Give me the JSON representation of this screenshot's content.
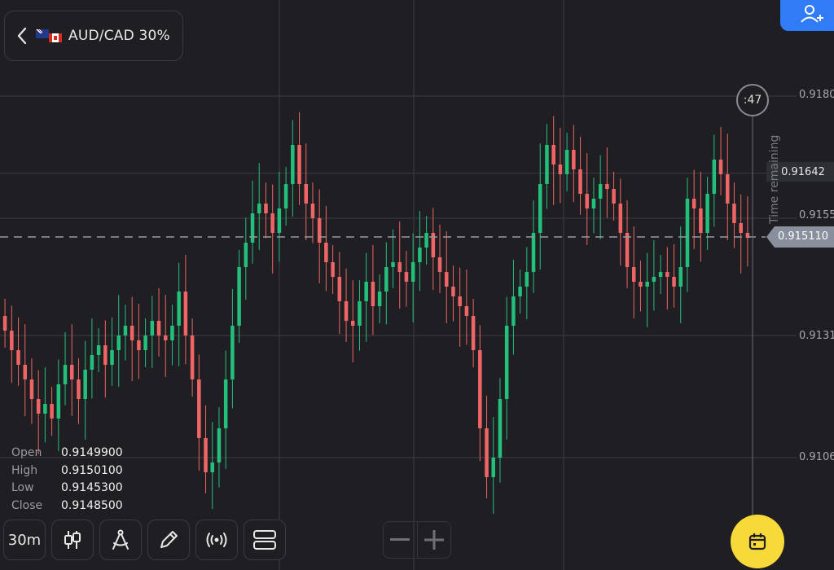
{
  "header": {
    "pair_label": "AUD/CAD 30%",
    "flags": [
      "australia-flag",
      "canada-flag"
    ]
  },
  "timer": {
    "text": ":47",
    "caption": "Time remaining"
  },
  "price_axis": {
    "labels": [
      "0.9180",
      "0.9155",
      "0.9131",
      "0.9106"
    ],
    "highlight": "0.91642",
    "current": "0.915110"
  },
  "ohlc": {
    "open_label": "Open",
    "open_value": "0.9149900",
    "high_label": "High",
    "high_value": "0.9150100",
    "low_label": "Low",
    "low_value": "0.9145300",
    "close_label": "Close",
    "close_value": "0.9148500"
  },
  "toolbar": {
    "timeframe_label": "30m"
  },
  "colors": {
    "up": "#22c07a",
    "down": "#ef6565",
    "accent": "#2f7cf6",
    "calendar": "#f7d93a"
  },
  "chart_data": {
    "type": "candlestick",
    "ylim": [
      0.9088,
      0.919
    ],
    "current_price": 0.91511,
    "y_gridlines": [
      0.918,
      0.91642,
      0.9155,
      0.9131,
      0.9106
    ],
    "close_series": [
      0.9132,
      0.9128,
      0.9125,
      0.9122,
      0.9118,
      0.9115,
      0.9117,
      0.9114,
      0.9121,
      0.9125,
      0.9122,
      0.9118,
      0.9124,
      0.9127,
      0.9129,
      0.9125,
      0.9128,
      0.9131,
      0.9133,
      0.913,
      0.9128,
      0.9131,
      0.9134,
      0.9131,
      0.913,
      0.9133,
      0.914,
      0.9131,
      0.9122,
      0.911,
      0.9103,
      0.9105,
      0.9112,
      0.9122,
      0.9133,
      0.9145,
      0.915,
      0.9156,
      0.9158,
      0.9156,
      0.9152,
      0.9157,
      0.9162,
      0.917,
      0.9162,
      0.9158,
      0.9155,
      0.915,
      0.9146,
      0.9143,
      0.9138,
      0.9134,
      0.9133,
      0.9138,
      0.9142,
      0.9137,
      0.914,
      0.9145,
      0.9146,
      0.9144,
      0.9142,
      0.9146,
      0.9149,
      0.9152,
      0.9147,
      0.9144,
      0.9141,
      0.9139,
      0.9137,
      0.9135,
      0.9128,
      0.9112,
      0.9102,
      0.9106,
      0.9118,
      0.9133,
      0.9139,
      0.9141,
      0.9144,
      0.9152,
      0.9162,
      0.917,
      0.9166,
      0.9164,
      0.9169,
      0.9165,
      0.916,
      0.9157,
      0.9159,
      0.9162,
      0.9161,
      0.9158,
      0.9152,
      0.9145,
      0.9142,
      0.9141,
      0.9142,
      0.9143,
      0.9144,
      0.9143,
      0.9141,
      0.9145,
      0.9159,
      0.9157,
      0.9152,
      0.916,
      0.9167,
      0.9164,
      0.9158,
      0.9154,
      0.9152,
      0.9151
    ]
  }
}
